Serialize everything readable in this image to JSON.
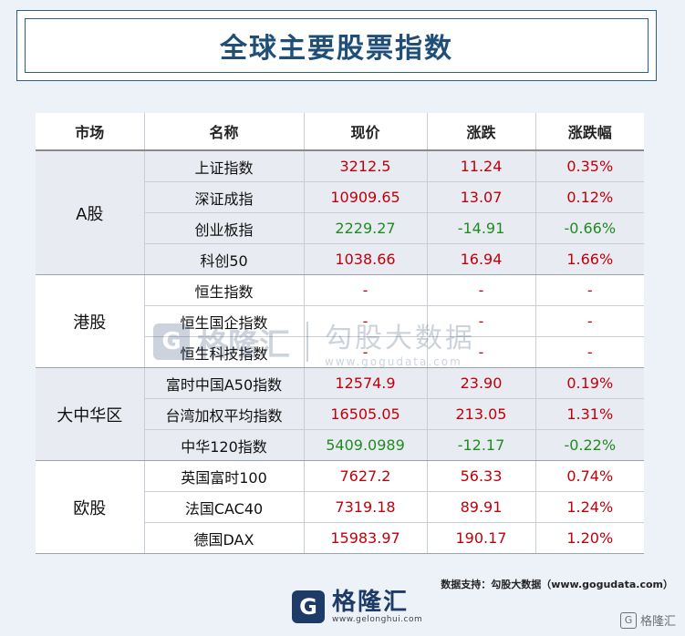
{
  "title": "全球主要股票指数",
  "headers": [
    "市场",
    "名称",
    "现价",
    "涨跌",
    "涨跌幅"
  ],
  "groups": [
    {
      "market": "A股",
      "rows": [
        {
          "name": "上证指数",
          "price": "3212.5",
          "change": "11.24",
          "pct": "0.35%",
          "dir": "up"
        },
        {
          "name": "深证成指",
          "price": "10909.65",
          "change": "13.07",
          "pct": "0.12%",
          "dir": "up"
        },
        {
          "name": "创业板指",
          "price": "2229.27",
          "change": "-14.91",
          "pct": "-0.66%",
          "dir": "down"
        },
        {
          "name": "科创50",
          "price": "1038.66",
          "change": "16.94",
          "pct": "1.66%",
          "dir": "up"
        }
      ]
    },
    {
      "market": "港股",
      "rows": [
        {
          "name": "恒生指数",
          "price": "-",
          "change": "-",
          "pct": "-",
          "dir": "up"
        },
        {
          "name": "恒生国企指数",
          "price": "-",
          "change": "-",
          "pct": "-",
          "dir": "up"
        },
        {
          "name": "恒生科技指数",
          "price": "-",
          "change": "-",
          "pct": "-",
          "dir": "up"
        }
      ]
    },
    {
      "market": "大中华区",
      "rows": [
        {
          "name": "富时中国A50指数",
          "price": "12574.9",
          "change": "23.90",
          "pct": "0.19%",
          "dir": "up"
        },
        {
          "name": "台湾加权平均指数",
          "price": "16505.05",
          "change": "213.05",
          "pct": "1.31%",
          "dir": "up"
        },
        {
          "name": "中华120指数",
          "price": "5409.0989",
          "change": "-12.17",
          "pct": "-0.22%",
          "dir": "down"
        }
      ]
    },
    {
      "market": "欧股",
      "rows": [
        {
          "name": "英国富时100",
          "price": "7627.2",
          "change": "56.33",
          "pct": "0.74%",
          "dir": "up"
        },
        {
          "name": "法国CAC40",
          "price": "7319.18",
          "change": "89.91",
          "pct": "1.24%",
          "dir": "up"
        },
        {
          "name": "德国DAX",
          "price": "15983.97",
          "change": "190.17",
          "pct": "1.20%",
          "dir": "up"
        }
      ]
    }
  ],
  "source_note": "数据支持：勾股大数据（www.gogudata.com）",
  "logo": {
    "name": "格隆汇",
    "url": "www.gelonghui.com",
    "mark": "G"
  },
  "watermark": {
    "name": "格隆汇",
    "cn": "勾股大数据",
    "url": "www.gogudata.com",
    "mark": "G"
  },
  "corner": {
    "label": "格隆汇",
    "icon": "logo-icon"
  },
  "colors": {
    "up": "#c0000a",
    "down": "#1e8c1e",
    "accent": "#1f4e79",
    "alt_row": "#e8ebf1"
  }
}
